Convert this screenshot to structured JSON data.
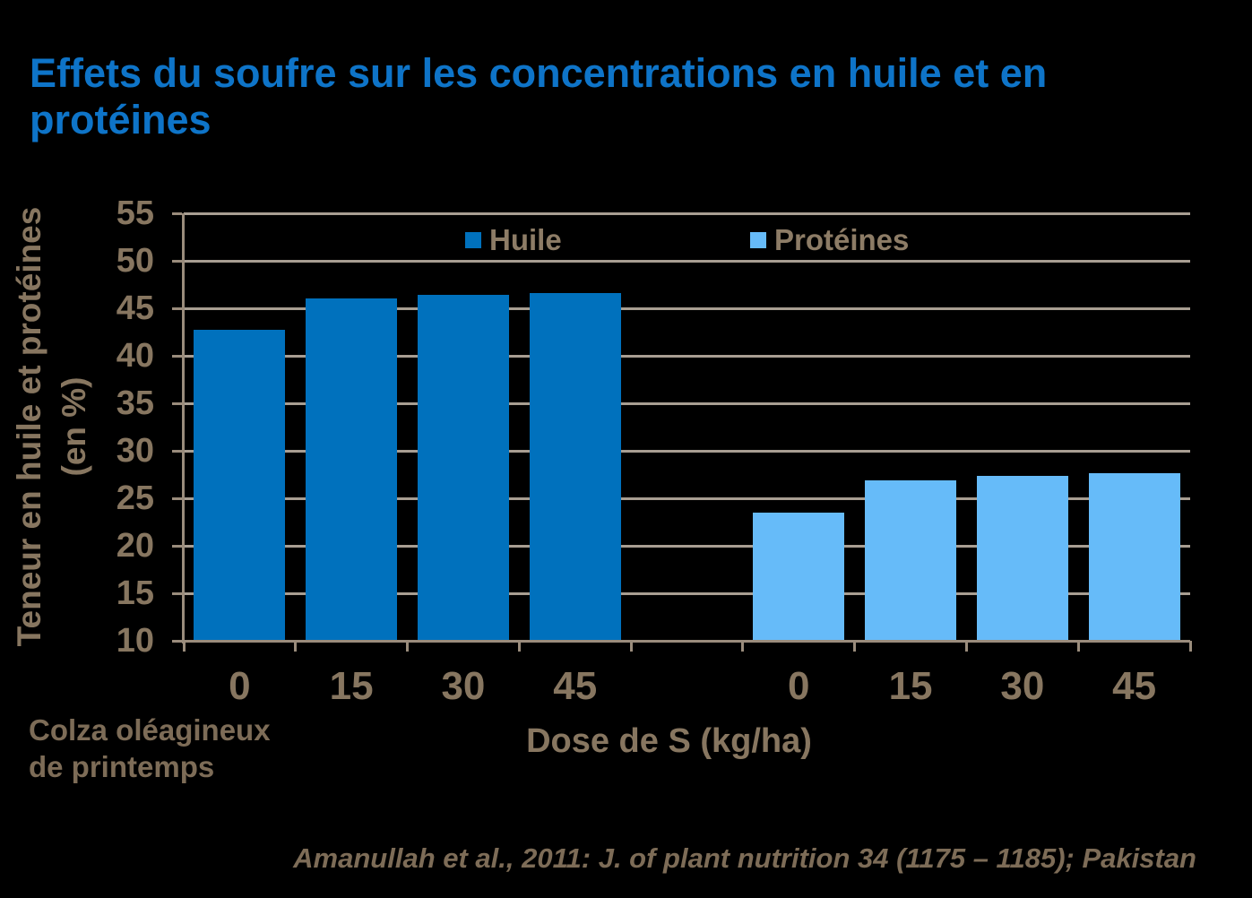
{
  "slide": {
    "title_lines": [
      "Effets du soufre sur les concentrations en huile et en",
      "protéines"
    ],
    "footnote_lines": [
      "Colza oléagineux",
      "de printemps"
    ],
    "citation": "Amanullah et al., 2011: J. of plant nutrition 34 (1175 – 1185); Pakistan"
  },
  "chart_data": {
    "type": "bar",
    "title": "",
    "categories": [
      "0",
      "15",
      "30",
      "45"
    ],
    "series": [
      {
        "name": "Huile",
        "color": "#0071BD",
        "values": [
          42.7,
          46.0,
          46.4,
          46.6
        ]
      },
      {
        "name": "Protéines",
        "color": "#66BBF9",
        "values": [
          23.5,
          26.9,
          27.4,
          27.6
        ]
      }
    ],
    "xlabel": "Dose de S (kg/ha)",
    "ylabel": "Teneur en huile et protéines",
    "ylabel_unit": "(en %)",
    "ylim": [
      10,
      55
    ],
    "ytick_step": 5,
    "yticks": [
      "10",
      "15",
      "20",
      "25",
      "30",
      "35",
      "40",
      "45",
      "50",
      "55"
    ],
    "grid": true,
    "legend_position": "top-inside",
    "background": "#000000"
  },
  "colors": {
    "title_blue": "#0E74C8",
    "bar_dark_blue": "#0071BD",
    "bar_light_blue": "#66BBF9",
    "gridline": "#A89E92",
    "axis": "#9A8C7C",
    "tick_label": "#877660",
    "annotation": "#7D6C57"
  }
}
